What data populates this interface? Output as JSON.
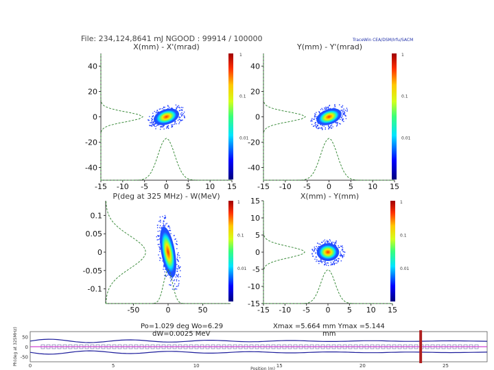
{
  "header": {
    "file_line": "File: 234,124,8641 mJ    NGOOD : 99914 / 100000",
    "software": "TraceWin   CEA/DSM/Irfu/SACM"
  },
  "colorbar": {
    "ticks": [
      "1",
      "0.1",
      "0.01"
    ]
  },
  "chart_data": [
    {
      "type": "heatmap",
      "id": "x-xp",
      "title": "X(mm) - X'(mrad)",
      "x_ticks": [
        "-15",
        "-10",
        "-5",
        "0",
        "5",
        "10",
        "15"
      ],
      "y_ticks": [
        "40",
        "20",
        "0",
        "-20",
        "-40"
      ],
      "xlim": [
        -15,
        15
      ],
      "ylim": [
        -50,
        50
      ],
      "core": {
        "cx": 0,
        "cy": 0,
        "rx": 3.0,
        "ry": 6.0,
        "tilt_deg": -18
      },
      "x_profile_peak": 0,
      "y_profile_peak": 0
    },
    {
      "type": "heatmap",
      "id": "y-yp",
      "title": "Y(mm) - Y'(mrad)",
      "x_ticks": [
        "-15",
        "-10",
        "-5",
        "0",
        "5",
        "10",
        "15"
      ],
      "y_ticks": [
        "40",
        "20",
        "0",
        "-20",
        "-40"
      ],
      "xlim": [
        -15,
        15
      ],
      "ylim": [
        -50,
        50
      ],
      "core": {
        "cx": 0,
        "cy": 0,
        "rx": 3.0,
        "ry": 6.0,
        "tilt_deg": -20
      },
      "x_profile_peak": 0,
      "y_profile_peak": 0
    },
    {
      "type": "heatmap",
      "id": "phase-energy",
      "title": "P(deg at 325 MHz) - W(MeV)",
      "x_ticks": [
        "-50",
        "0",
        "50"
      ],
      "y_ticks": [
        "0.1",
        "0.05",
        "0",
        "-0.05",
        "-0.1"
      ],
      "xlim": [
        -90,
        90
      ],
      "ylim": [
        -0.14,
        0.14
      ],
      "core": {
        "cx": 0,
        "cy": 0,
        "rx": 10,
        "ry": 0.07,
        "tilt_deg": -10
      },
      "x_profile_peak": 0,
      "y_profile_peak": 0
    },
    {
      "type": "heatmap",
      "id": "x-y",
      "title": "X(mm) - Y(mm)",
      "x_ticks": [
        "-15",
        "-10",
        "-5",
        "0",
        "5",
        "10",
        "15"
      ],
      "y_ticks": [
        "15",
        "10",
        "5",
        "0",
        "-5",
        "-10",
        "-15"
      ],
      "xlim": [
        -15,
        15
      ],
      "ylim": [
        -15,
        15
      ],
      "core": {
        "cx": 0,
        "cy": 0,
        "rx": 2.6,
        "ry": 2.6,
        "tilt_deg": 0
      },
      "x_profile_peak": 0,
      "y_profile_peak": 0
    },
    {
      "type": "line",
      "id": "envelope",
      "ylabel": "Ph(deg at 325MHz)",
      "xlabel": "Position (m)",
      "y_ticks": [
        "50",
        "0",
        "-50"
      ],
      "ylim": [
        -75,
        75
      ],
      "x_ticks": [
        "0",
        "5",
        "10",
        "15",
        "20",
        "25"
      ],
      "xlim": [
        0,
        27.5
      ],
      "marker_position": 23.5
    }
  ],
  "footers": {
    "phase_energy": [
      "Po=1.029 deg   Wo=6.29",
      "dW=0.0025 MeV"
    ],
    "x_y": [
      "Xmax =5.664 mm   Ymax =5.144",
      "mm"
    ]
  }
}
